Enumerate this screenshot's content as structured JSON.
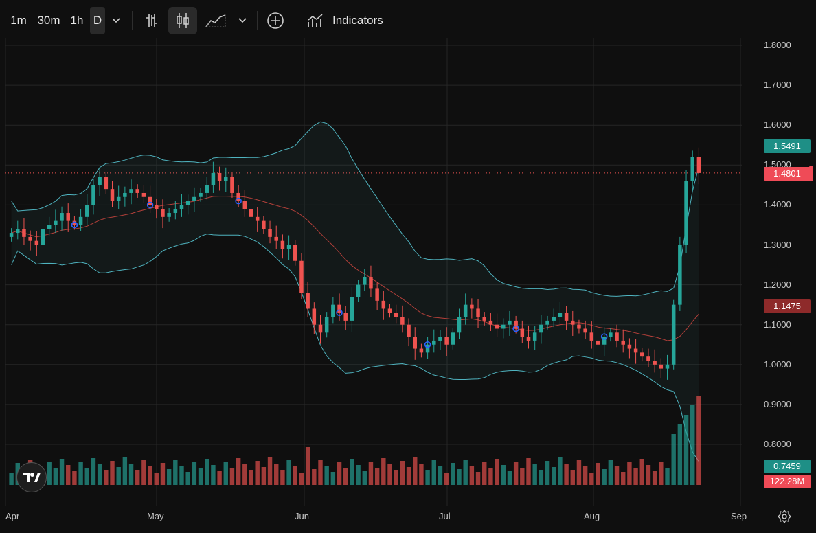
{
  "toolbar": {
    "intervals": [
      "1m",
      "30m",
      "1h",
      "D"
    ],
    "active_interval": "D",
    "indicators_label": "Indicators"
  },
  "price_axis": {
    "ticks": [
      "1.8000",
      "1.7000",
      "1.6000",
      "1.5000",
      "1.4000",
      "1.3000",
      "1.2000",
      "1.1000",
      "1.0000",
      "0.9000",
      "0.8000"
    ],
    "upper_band_tag": "1.5491",
    "last_price_tag": "1.4801",
    "middle_band_tag": "1.1475",
    "lower_band_tag": "0.7459",
    "volume_tag": "122.28M"
  },
  "time_axis": {
    "labels": [
      "Apr",
      "May",
      "Jun",
      "Jul",
      "Aug",
      "Sep"
    ]
  },
  "colors": {
    "up": "#26a69a",
    "down": "#ef5350",
    "band": "#4fb3bf",
    "basis": "#b5403a",
    "marker": "#2962ff",
    "background": "#0f0f0f"
  },
  "chart_data": {
    "type": "candlestick",
    "indicator": "Bollinger Bands",
    "ylim": [
      0.72,
      1.82
    ],
    "candles_close": [
      1.33,
      1.34,
      1.32,
      1.31,
      1.3,
      1.34,
      1.35,
      1.36,
      1.38,
      1.36,
      1.35,
      1.37,
      1.4,
      1.45,
      1.47,
      1.44,
      1.41,
      1.42,
      1.43,
      1.44,
      1.43,
      1.42,
      1.4,
      1.39,
      1.37,
      1.38,
      1.39,
      1.4,
      1.41,
      1.42,
      1.43,
      1.45,
      1.48,
      1.46,
      1.47,
      1.43,
      1.41,
      1.39,
      1.37,
      1.36,
      1.34,
      1.32,
      1.31,
      1.29,
      1.3,
      1.26,
      1.18,
      1.14,
      1.1,
      1.08,
      1.12,
      1.15,
      1.13,
      1.11,
      1.17,
      1.2,
      1.22,
      1.19,
      1.16,
      1.14,
      1.13,
      1.12,
      1.1,
      1.07,
      1.04,
      1.03,
      1.05,
      1.06,
      1.07,
      1.05,
      1.08,
      1.12,
      1.15,
      1.14,
      1.12,
      1.11,
      1.1,
      1.09,
      1.1,
      1.11,
      1.09,
      1.07,
      1.06,
      1.08,
      1.1,
      1.11,
      1.12,
      1.13,
      1.11,
      1.1,
      1.09,
      1.08,
      1.06,
      1.05,
      1.07,
      1.08,
      1.06,
      1.05,
      1.04,
      1.03,
      1.02,
      1.01,
      1.0,
      0.99,
      1.0,
      1.15,
      1.3,
      1.46,
      1.52,
      1.48
    ],
    "volume_tag": "122.28M"
  }
}
